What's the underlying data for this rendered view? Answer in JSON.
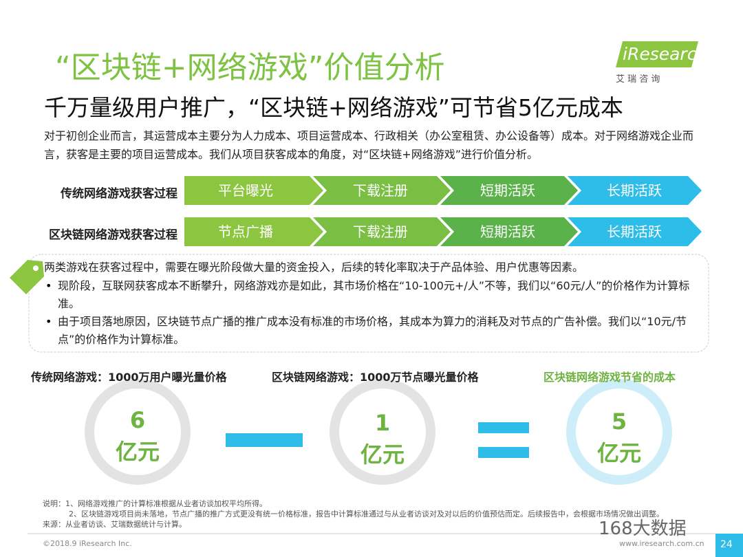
{
  "header": {
    "title": "“区块链+网络游戏”价值分析",
    "subtitle": "千万量级用户推广，“区块链+网络游戏”可节省5亿元成本",
    "logo": "iResearch",
    "logo_cn": "艾 瑞 咨 询"
  },
  "intro": "对于初创企业而言，其运营成本主要分为人力成本、项目运营成本、行政相关（办公室租赁、办公设备等）成本。对于网络游戏企业而言，获客是主要的项目运营成本。我们从项目获客成本的角度，对“区块链+网络游戏”进行价值分析。",
  "flows": [
    {
      "label": "传统网络游戏获客过程",
      "steps": [
        "平台曝光",
        "下载注册",
        "短期活跃",
        "长期活跃"
      ]
    },
    {
      "label": "区块链网络游戏获客过程",
      "steps": [
        "节点广播",
        "下载注册",
        "短期活跃",
        "长期活跃"
      ]
    }
  ],
  "notes": {
    "lead": "两类游戏在获客过程中，需要在曝光阶段做大量的资金投入，后续的转化率取决于产品体验、用户优惠等因素。",
    "bullets": [
      "现阶段，互联网获客成本不断攀升，网络游戏亦是如此，其市场价格在“10-100元+/人”不等，我们以“60元/人”的价格作为计算标准。",
      "由于项目落地原因，区块链节点广播的推广成本没有标准的市场价格，其成本为算力的消耗及对节点的广告补偿。我们以“10元/节点”的价格作为计算标准。"
    ]
  },
  "calc": {
    "items": [
      {
        "label": "传统网络游戏：1000万用户曝光量价格",
        "value": "6",
        "unit": "亿元"
      },
      {
        "label": "区块链网络游戏：1000万节点曝光量价格",
        "value": "1",
        "unit": "亿元"
      },
      {
        "label": "区块链网络游戏节省的成本",
        "value": "5",
        "unit": "亿元"
      }
    ]
  },
  "footnotes": [
    "说明：1、网络游戏推广的计算标准根据从业者访谈加权平均所得。",
    "2、区块链游戏项目尚未落地，节点广播的推广方式更没有统一价格标准，报告中计算标准通过与从业者访谈对及对以后的价值预估而定。后续报告中，会根据市场情况做出调整。",
    "来源：从业者访谈、艾瑞数据统计与计算。"
  ],
  "footer": {
    "copyright": "©2018.9 iResearch Inc.",
    "url": "www.iresearch.com.cn",
    "page": "24",
    "watermark": "168大数据"
  }
}
